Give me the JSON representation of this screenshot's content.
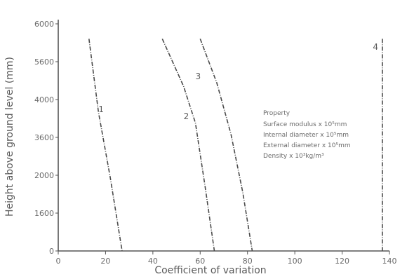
{
  "chart_data": {
    "type": "line",
    "xlabel": "Coefficient of variation",
    "ylabel": "Height above ground level (mm)",
    "xlim": [
      0,
      140
    ],
    "ylim": [
      0,
      6000
    ],
    "x_ticks": [
      "0",
      "20",
      "40",
      "60",
      "80",
      "100",
      "120",
      "140"
    ],
    "y_ticks": [
      "0",
      "1600",
      "2000",
      "3600",
      "4000",
      "5600",
      "6000"
    ],
    "legend": {
      "title": "Property",
      "entries": [
        "Surface modulus x 10⁵mm",
        "Internal diameter x 10⁵mm",
        "External diameter x 10⁵mm",
        "Density x 10³kg/m³"
      ]
    },
    "series": [
      {
        "name": "1",
        "points": [
          [
            13,
            5800
          ],
          [
            17,
            3800
          ],
          [
            22,
            2000
          ],
          [
            27,
            0
          ]
        ]
      },
      {
        "name": "2",
        "points": [
          [
            44,
            5800
          ],
          [
            53,
            4500
          ],
          [
            58,
            3500
          ],
          [
            62,
            1800
          ],
          [
            66,
            0
          ]
        ]
      },
      {
        "name": "3",
        "points": [
          [
            60,
            5800
          ],
          [
            67,
            4600
          ],
          [
            73,
            3200
          ],
          [
            78,
            1600
          ],
          [
            82,
            0
          ]
        ]
      },
      {
        "name": "4",
        "points": [
          [
            137,
            5800
          ],
          [
            137,
            0
          ]
        ]
      }
    ]
  }
}
